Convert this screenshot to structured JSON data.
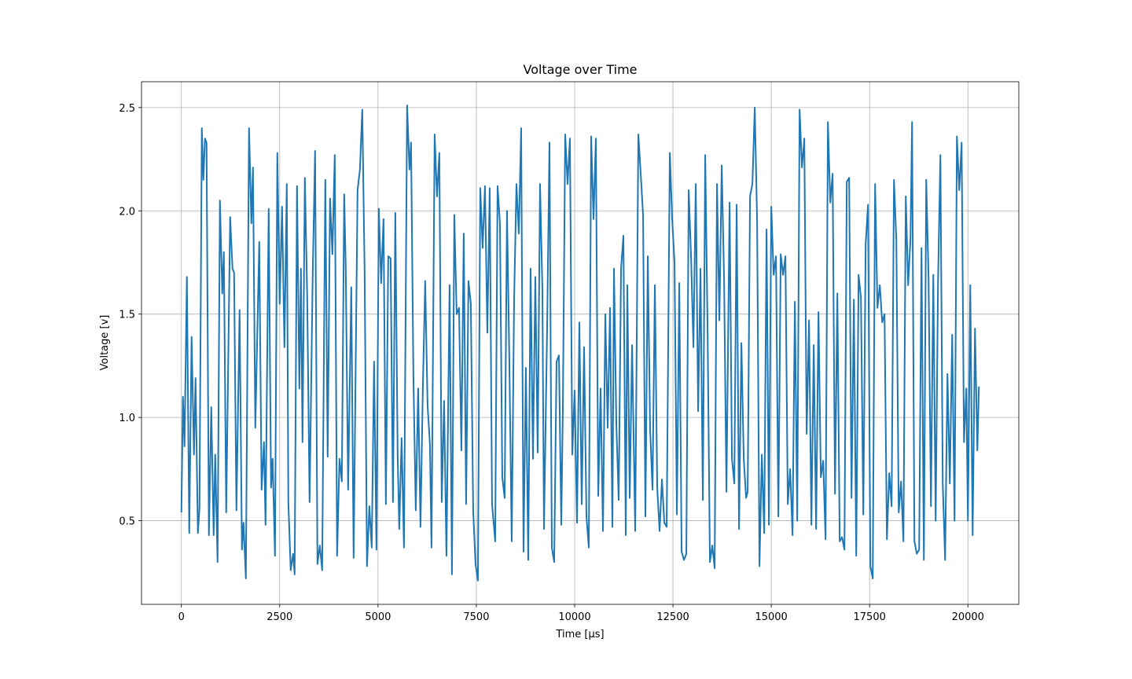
{
  "chart_data": {
    "type": "line",
    "title": "Voltage over Time",
    "xlabel": "Time [μs]",
    "ylabel": "Voltage [v]",
    "color": "#1f77b4",
    "grid": true,
    "xlim": [
      -1014,
      21294
    ],
    "ylim": [
      0.095,
      2.625
    ],
    "xticks": [
      0,
      2500,
      5000,
      7500,
      10000,
      12500,
      15000,
      17500,
      20000
    ],
    "yticks": [
      0.5,
      {
        "value": 1,
        "label": "1.0"
      },
      1.5,
      {
        "value": 2,
        "label": "2.0"
      },
      2.5
    ],
    "x": [
      0,
      40,
      80,
      140,
      200,
      260,
      320,
      360,
      420,
      460,
      520,
      560,
      600,
      640,
      700,
      760,
      820,
      860,
      920,
      980,
      1040,
      1080,
      1140,
      1240,
      1300,
      1340,
      1400,
      1480,
      1540,
      1580,
      1640,
      1720,
      1780,
      1820,
      1880,
      1980,
      2040,
      2100,
      2140,
      2220,
      2280,
      2320,
      2380,
      2440,
      2500,
      2560,
      2620,
      2680,
      2720,
      2780,
      2840,
      2880,
      2940,
      3000,
      3040,
      3080,
      3140,
      3200,
      3260,
      3340,
      3400,
      3460,
      3520,
      3580,
      3660,
      3720,
      3780,
      3840,
      3900,
      3960,
      4020,
      4080,
      4140,
      4180,
      4240,
      4320,
      4380,
      4480,
      4540,
      4600,
      4660,
      4720,
      4780,
      4840,
      4900,
      4960,
      5020,
      5080,
      5140,
      5200,
      5260,
      5320,
      5380,
      5440,
      5500,
      5540,
      5600,
      5660,
      5740,
      5800,
      5840,
      5900,
      5960,
      6020,
      6080,
      6140,
      6200,
      6260,
      6320,
      6360,
      6440,
      6500,
      6560,
      6620,
      6680,
      6740,
      6820,
      6880,
      6940,
      7000,
      7060,
      7120,
      7180,
      7240,
      7300,
      7360,
      7420,
      7480,
      7540,
      7600,
      7660,
      7720,
      7780,
      7840,
      7900,
      7980,
      8040,
      8100,
      8160,
      8220,
      8280,
      8340,
      8400,
      8460,
      8520,
      8580,
      8640,
      8700,
      8760,
      8820,
      8880,
      8940,
      9000,
      9060,
      9120,
      9180,
      9220,
      9300,
      9360,
      9420,
      9480,
      9540,
      9600,
      9660,
      9700,
      9760,
      9820,
      9880,
      9940,
      10000,
      10060,
      10120,
      10180,
      10240,
      10300,
      10360,
      10420,
      10480,
      10540,
      10600,
      10660,
      10720,
      10780,
      10840,
      10900,
      10960,
      11000,
      11060,
      11120,
      11180,
      11240,
      11300,
      11340,
      11400,
      11460,
      11540,
      11620,
      11680,
      11740,
      11800,
      11860,
      11920,
      11980,
      12040,
      12100,
      12160,
      12220,
      12280,
      12340,
      12420,
      12480,
      12540,
      12600,
      12660,
      12720,
      12780,
      12840,
      12900,
      12960,
      13020,
      13080,
      13140,
      13200,
      13260,
      13320,
      13380,
      13440,
      13500,
      13560,
      13620,
      13680,
      13740,
      13800,
      13860,
      13940,
      14000,
      14060,
      14120,
      14180,
      14240,
      14300,
      14360,
      14400,
      14460,
      14520,
      14580,
      14640,
      14700,
      14760,
      14820,
      14880,
      14940,
      15000,
      15060,
      15120,
      15180,
      15240,
      15300,
      15360,
      15420,
      15480,
      15540,
      15600,
      15660,
      15720,
      15780,
      15840,
      15900,
      15960,
      16020,
      16080,
      16140,
      16200,
      16260,
      16320,
      16380,
      16440,
      16500,
      16560,
      16620,
      16680,
      16740,
      16800,
      16860,
      16920,
      16980,
      17040,
      17100,
      17160,
      17220,
      17280,
      17340,
      17400,
      17460,
      17520,
      17580,
      17640,
      17700,
      17760,
      17820,
      17880,
      17940,
      18000,
      18060,
      18120,
      18180,
      18240,
      18300,
      18360,
      18420,
      18480,
      18540,
      18580,
      18640,
      18700,
      18760,
      18820,
      18880,
      18940,
      19000,
      19060,
      19120,
      19180,
      19240,
      19300,
      19360,
      19420,
      19480,
      19540,
      19600,
      19660,
      19720,
      19780,
      19840,
      19900,
      19960,
      20000,
      20060,
      20120,
      20180,
      20240,
      20280
    ],
    "values": [
      0.54,
      1.1,
      0.86,
      1.68,
      0.44,
      1.39,
      0.82,
      1.19,
      0.44,
      0.56,
      2.4,
      2.15,
      2.35,
      2.33,
      0.43,
      1.05,
      0.43,
      0.82,
      0.3,
      2.05,
      1.6,
      1.8,
      0.54,
      1.97,
      1.72,
      1.7,
      0.55,
      1.52,
      0.36,
      0.49,
      0.22,
      2.4,
      1.94,
      2.21,
      0.95,
      1.85,
      0.65,
      0.88,
      0.48,
      2.01,
      0.66,
      0.8,
      0.33,
      2.28,
      1.55,
      2.02,
      1.34,
      2.13,
      0.59,
      0.26,
      0.34,
      0.24,
      2.12,
      1.14,
      1.72,
      0.88,
      2.16,
      1.58,
      0.59,
      1.7,
      2.29,
      0.29,
      0.38,
      0.26,
      2.15,
      0.81,
      2.06,
      1.79,
      2.27,
      0.33,
      0.8,
      0.69,
      2.08,
      1.72,
      0.65,
      1.63,
      0.32,
      2.1,
      2.2,
      2.49,
      1.7,
      0.28,
      0.57,
      0.37,
      1.27,
      0.36,
      2.01,
      1.65,
      1.96,
      0.58,
      1.78,
      1.77,
      0.59,
      1.99,
      0.81,
      0.46,
      0.9,
      0.37,
      2.51,
      2.2,
      2.33,
      1.2,
      0.55,
      1.14,
      0.47,
      1.14,
      1.66,
      1.06,
      0.87,
      0.37,
      2.37,
      2.07,
      2.28,
      0.59,
      1.08,
      0.33,
      1.64,
      0.24,
      1.98,
      1.5,
      1.53,
      0.84,
      1.89,
      0.58,
      1.66,
      1.55,
      0.55,
      0.29,
      0.21,
      2.11,
      1.82,
      2.12,
      1.41,
      2.11,
      0.58,
      0.4,
      2.12,
      1.94,
      0.71,
      0.61,
      2.0,
      1.27,
      0.4,
      1.56,
      2.13,
      1.89,
      2.4,
      0.35,
      1.24,
      0.31,
      1.72,
      0.8,
      1.68,
      0.83,
      2.13,
      1.62,
      0.46,
      1.43,
      2.33,
      0.37,
      0.3,
      1.27,
      1.3,
      0.48,
      1.04,
      2.37,
      2.13,
      2.35,
      0.82,
      1.13,
      0.49,
      1.46,
      0.58,
      1.34,
      0.52,
      0.37,
      2.36,
      1.96,
      2.35,
      0.62,
      1.14,
      0.45,
      1.5,
      0.95,
      1.53,
      0.47,
      1.72,
      0.97,
      0.6,
      1.72,
      1.88,
      0.43,
      1.64,
      0.61,
      1.35,
      0.45,
      2.37,
      2.18,
      1.98,
      0.52,
      1.78,
      0.94,
      0.65,
      1.64,
      0.66,
      0.45,
      0.7,
      0.49,
      0.47,
      2.28,
      1.96,
      1.75,
      0.53,
      1.65,
      0.35,
      0.31,
      0.34,
      2.1,
      1.78,
      1.34,
      2.13,
      1.03,
      1.72,
      0.6,
      2.27,
      1.43,
      0.3,
      0.38,
      0.27,
      2.13,
      1.47,
      2.22,
      1.67,
      0.64,
      2.04,
      0.8,
      0.68,
      2.03,
      0.46,
      1.36,
      0.8,
      0.61,
      0.64,
      2.07,
      2.13,
      2.5,
      1.95,
      0.28,
      0.82,
      0.44,
      1.91,
      0.48,
      2.02,
      1.69,
      1.78,
      0.52,
      1.79,
      1.69,
      1.78,
      0.58,
      0.75,
      0.43,
      1.56,
      0.5,
      2.49,
      2.21,
      2.35,
      0.92,
      1.47,
      0.48,
      1.35,
      0.46,
      1.51,
      0.71,
      0.79,
      0.41,
      2.43,
      2.04,
      2.18,
      0.63,
      1.6,
      0.4,
      0.42,
      0.36,
      2.14,
      2.16,
      0.61,
      1.57,
      0.33,
      1.69,
      1.58,
      0.53,
      1.84,
      2.03,
      0.28,
      0.22,
      2.13,
      1.53,
      1.64,
      1.46,
      1.5,
      0.41,
      0.73,
      0.57,
      2.15,
      1.86,
      0.54,
      0.69,
      0.4,
      2.07,
      1.64,
      1.87,
      2.43,
      0.4,
      0.34,
      0.36,
      1.82,
      0.31,
      2.15,
      1.67,
      0.57,
      1.69,
      0.5,
      1.65,
      2.27,
      0.68,
      0.31,
      1.21,
      0.68,
      1.4,
      0.5,
      2.36,
      2.1,
      2.33,
      0.88,
      1.14,
      0.5,
      1.64,
      0.43,
      1.43,
      0.84,
      1.15
    ]
  }
}
